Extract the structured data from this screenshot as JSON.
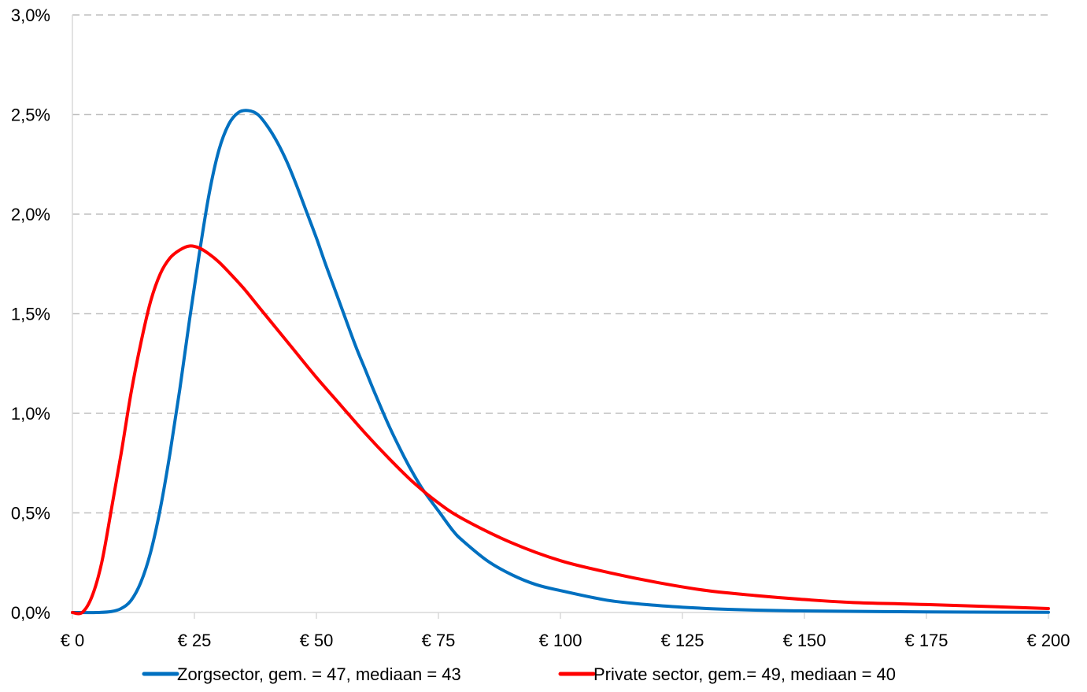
{
  "chart_data": {
    "type": "line",
    "title": "",
    "xlabel": "",
    "ylabel": "",
    "xlim": [
      0,
      200
    ],
    "ylim": [
      0,
      3.0
    ],
    "grid": true,
    "legend_position": "bottom",
    "x_ticks": [
      {
        "value": 0,
        "label": "€ 0"
      },
      {
        "value": 25,
        "label": "€ 25"
      },
      {
        "value": 50,
        "label": "€ 50"
      },
      {
        "value": 75,
        "label": "€ 75"
      },
      {
        "value": 100,
        "label": "€ 100"
      },
      {
        "value": 125,
        "label": "€ 125"
      },
      {
        "value": 150,
        "label": "€ 150"
      },
      {
        "value": 175,
        "label": "€ 175"
      },
      {
        "value": 200,
        "label": "€ 200"
      }
    ],
    "y_ticks": [
      {
        "value": 0.0,
        "label": "0,0%"
      },
      {
        "value": 0.5,
        "label": "0,5%"
      },
      {
        "value": 1.0,
        "label": "1,0%"
      },
      {
        "value": 1.5,
        "label": "1,5%"
      },
      {
        "value": 2.0,
        "label": "2,0%"
      },
      {
        "value": 2.5,
        "label": "2,5%"
      },
      {
        "value": 3.0,
        "label": "3,0%"
      }
    ],
    "series": [
      {
        "name": "Zorgsector, gem. = 47, mediaan = 43",
        "color": "#0070C0",
        "x": [
          0,
          5,
          8,
          10,
          12,
          14,
          16,
          18,
          20,
          22,
          24,
          26,
          28,
          30,
          32,
          34,
          36,
          38,
          40,
          42,
          44,
          46,
          48,
          50,
          52,
          55,
          58,
          60,
          62,
          65,
          68,
          70,
          72,
          75,
          78,
          80,
          85,
          90,
          95,
          100,
          110,
          120,
          130,
          140,
          150,
          175,
          200
        ],
        "y": [
          0,
          0,
          0.005,
          0.02,
          0.06,
          0.15,
          0.3,
          0.52,
          0.8,
          1.12,
          1.47,
          1.8,
          2.1,
          2.32,
          2.45,
          2.51,
          2.52,
          2.5,
          2.44,
          2.36,
          2.26,
          2.14,
          2.01,
          1.88,
          1.74,
          1.54,
          1.34,
          1.22,
          1.1,
          0.93,
          0.78,
          0.69,
          0.61,
          0.51,
          0.41,
          0.36,
          0.26,
          0.19,
          0.14,
          0.11,
          0.06,
          0.035,
          0.02,
          0.012,
          0.008,
          0.003,
          0.001
        ]
      },
      {
        "name": "Private sector, gem.= 49, mediaan = 40",
        "color": "#FF0000",
        "x": [
          0,
          2,
          4,
          6,
          8,
          10,
          12,
          14,
          16,
          18,
          20,
          22,
          24,
          26,
          28,
          30,
          32,
          35,
          38,
          40,
          45,
          50,
          55,
          60,
          65,
          70,
          75,
          80,
          90,
          100,
          110,
          120,
          130,
          140,
          150,
          160,
          175,
          200
        ],
        "y": [
          0,
          0,
          0.08,
          0.25,
          0.52,
          0.8,
          1.1,
          1.35,
          1.56,
          1.7,
          1.78,
          1.82,
          1.84,
          1.83,
          1.8,
          1.76,
          1.71,
          1.63,
          1.54,
          1.48,
          1.33,
          1.18,
          1.04,
          0.9,
          0.77,
          0.65,
          0.55,
          0.47,
          0.35,
          0.26,
          0.2,
          0.15,
          0.11,
          0.085,
          0.065,
          0.05,
          0.04,
          0.02
        ]
      }
    ]
  }
}
